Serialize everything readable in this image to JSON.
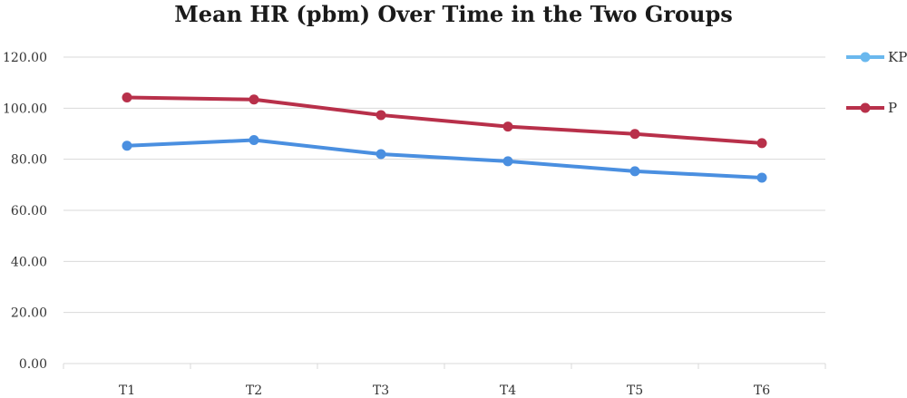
{
  "chart_data": {
    "type": "line",
    "title": "Mean HR (pbm) Over Time in the Two Groups",
    "xlabel": "",
    "ylabel": "",
    "categories": [
      "T1",
      "T2",
      "T3",
      "T4",
      "T5",
      "T6"
    ],
    "ylim": [
      0,
      120
    ],
    "ytick_labels": [
      "0.00",
      "20.00",
      "40.00",
      "60.00",
      "80.00",
      "100.00",
      "120.00"
    ],
    "ytick_values": [
      0,
      20,
      40,
      60,
      80,
      100,
      120
    ],
    "grid": true,
    "legend_position": "right",
    "series": [
      {
        "name": "KP",
        "values": [
          85.3,
          87.5,
          82.0,
          79.2,
          75.3,
          72.8
        ],
        "line_color": "#4a8fe0",
        "legend_marker_color": "#6ab8ee"
      },
      {
        "name": "P",
        "values": [
          104.2,
          103.4,
          97.3,
          92.8,
          89.9,
          86.3
        ],
        "line_color": "#b8304a",
        "legend_marker_color": "#b8304a"
      }
    ]
  }
}
